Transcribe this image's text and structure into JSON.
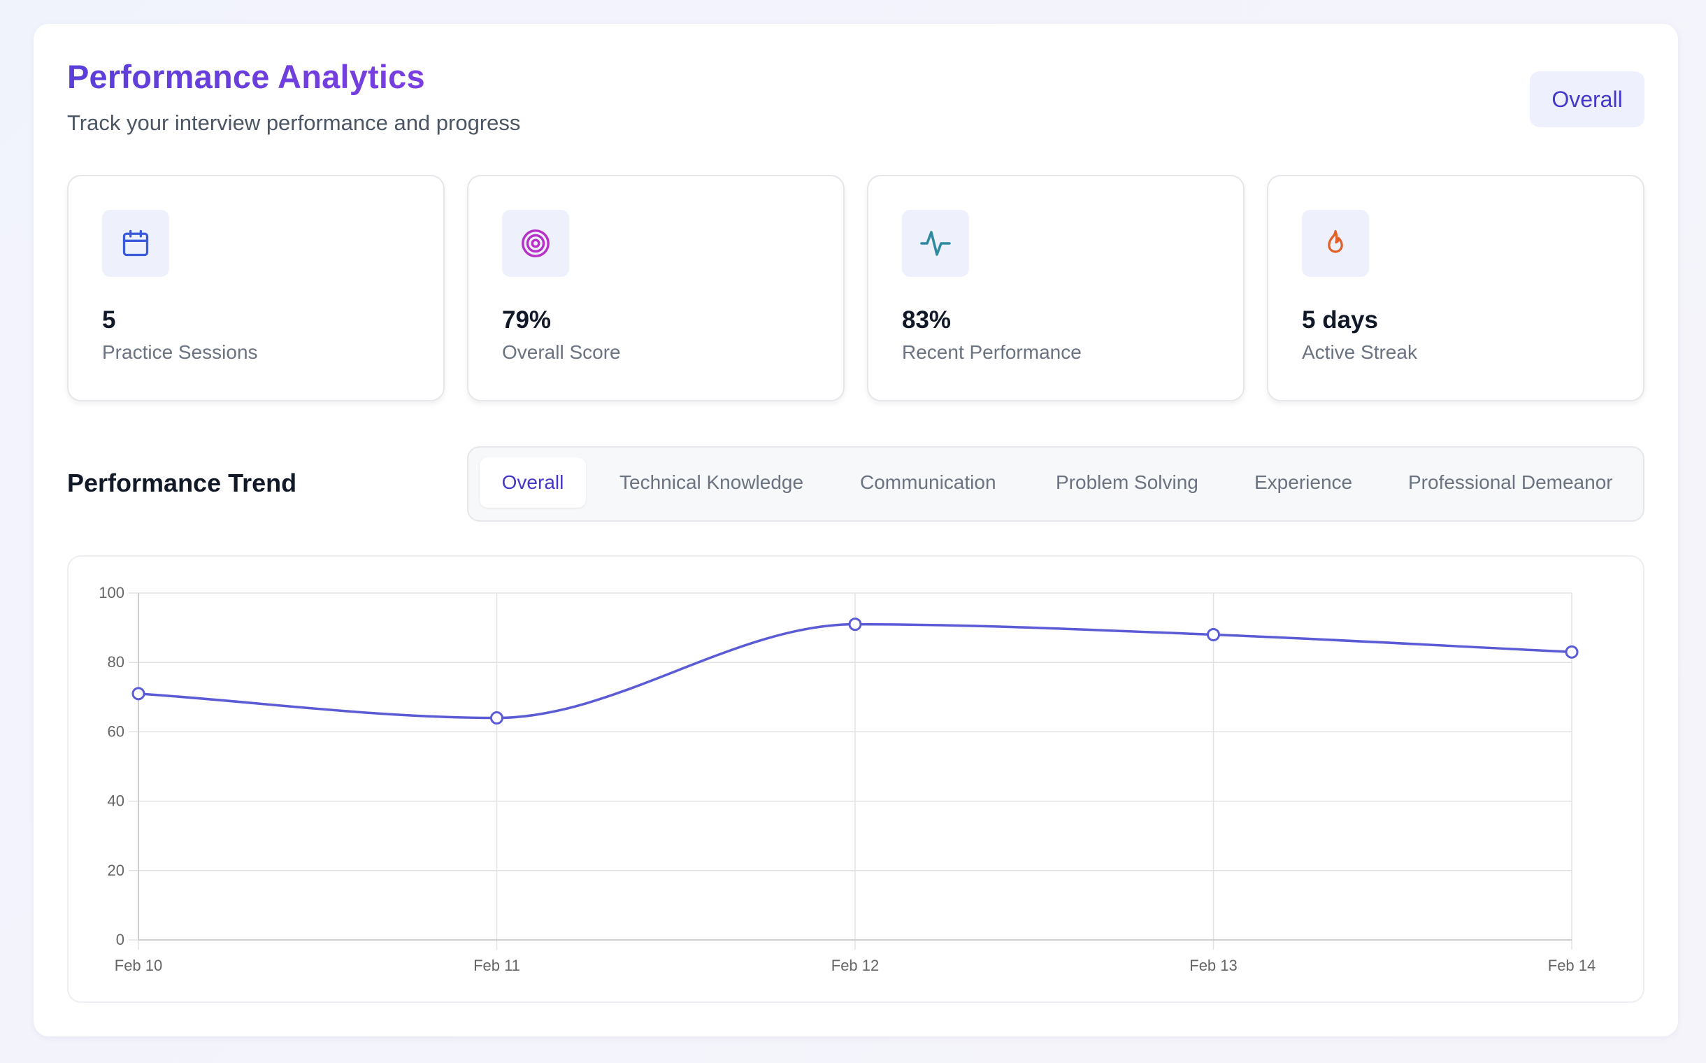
{
  "header": {
    "title": "Performance Analytics",
    "subtitle": "Track your interview performance and progress",
    "filter_label": "Overall"
  },
  "stats": [
    {
      "icon": "calendar-icon",
      "value": "5",
      "label": "Practice Sessions",
      "color": "#3b5bdb"
    },
    {
      "icon": "target-icon",
      "value": "79%",
      "label": "Overall Score",
      "color": "#b731c8"
    },
    {
      "icon": "activity-icon",
      "value": "83%",
      "label": "Recent Performance",
      "color": "#2f8aa0"
    },
    {
      "icon": "flame-icon",
      "value": "5 days",
      "label": "Active Streak",
      "color": "#e0612a"
    }
  ],
  "trend": {
    "title": "Performance Trend",
    "tabs": [
      "Overall",
      "Technical Knowledge",
      "Communication",
      "Problem Solving",
      "Experience",
      "Professional Demeanor"
    ],
    "active_tab": "Overall"
  },
  "chart_data": {
    "type": "line",
    "categories": [
      "Feb 10",
      "Feb 11",
      "Feb 12",
      "Feb 13",
      "Feb 14"
    ],
    "series": [
      {
        "values": [
          71,
          64,
          91,
          88,
          83
        ],
        "color": "#5b5bd6"
      }
    ],
    "ylim": [
      0,
      100
    ],
    "yticks": [
      0,
      20,
      40,
      60,
      80,
      100
    ],
    "grid": true,
    "legend": "none"
  }
}
